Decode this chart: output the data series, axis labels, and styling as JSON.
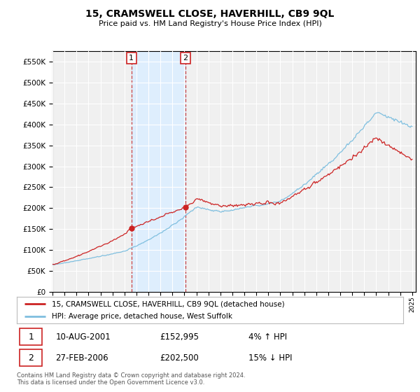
{
  "title": "15, CRAMSWELL CLOSE, HAVERHILL, CB9 9QL",
  "subtitle": "Price paid vs. HM Land Registry's House Price Index (HPI)",
  "legend_line1": "15, CRAMSWELL CLOSE, HAVERHILL, CB9 9QL (detached house)",
  "legend_line2": "HPI: Average price, detached house, West Suffolk",
  "sale1_date": "10-AUG-2001",
  "sale1_price": "£152,995",
  "sale1_hpi": "4% ↑ HPI",
  "sale2_date": "27-FEB-2006",
  "sale2_price": "£202,500",
  "sale2_hpi": "15% ↓ HPI",
  "footer": "Contains HM Land Registry data © Crown copyright and database right 2024.\nThis data is licensed under the Open Government Licence v3.0.",
  "hpi_color": "#7fbfdf",
  "price_color": "#cc2222",
  "vline_color": "#cc4444",
  "shade_color": "#ddeeff",
  "ylim_min": 0,
  "ylim_max": 575000,
  "background_color": "#ffffff",
  "plot_bg_color": "#f0f0f0"
}
